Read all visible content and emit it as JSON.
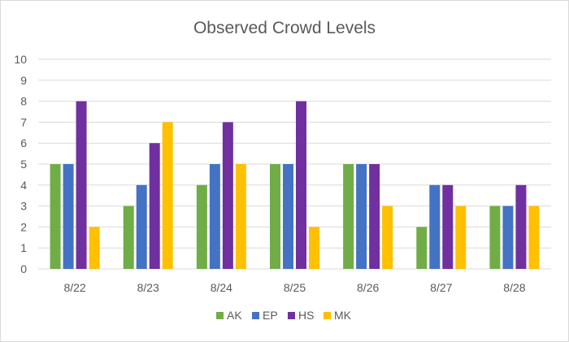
{
  "chart_data": {
    "type": "bar",
    "title": "Observed Crowd Levels",
    "xlabel": "",
    "ylabel": "",
    "categories": [
      "8/22",
      "8/23",
      "8/24",
      "8/25",
      "8/26",
      "8/27",
      "8/28"
    ],
    "series": [
      {
        "name": "AK",
        "color": "#70ad47",
        "values": [
          5,
          3,
          4,
          5,
          5,
          2,
          3
        ]
      },
      {
        "name": "EP",
        "color": "#4472c4",
        "values": [
          5,
          4,
          5,
          5,
          5,
          4,
          3
        ]
      },
      {
        "name": "HS",
        "color": "#7030a0",
        "values": [
          8,
          6,
          7,
          8,
          5,
          4,
          4
        ]
      },
      {
        "name": "MK",
        "color": "#ffc000",
        "values": [
          2,
          7,
          5,
          2,
          3,
          3,
          3
        ]
      }
    ],
    "ylim": [
      0,
      10
    ],
    "yticks": [
      0,
      1,
      2,
      3,
      4,
      5,
      6,
      7,
      8,
      9,
      10
    ],
    "grid": true,
    "legend_position": "bottom"
  }
}
